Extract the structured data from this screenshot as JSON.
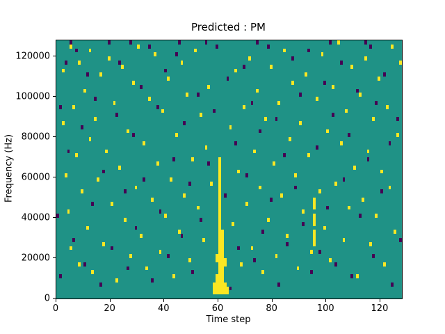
{
  "figure": {
    "background": "#ffffff"
  },
  "chart_data": {
    "type": "heatmap",
    "title": "Predicted : PM",
    "xlabel": "Time step",
    "ylabel": "Frequency (Hz)",
    "xlim": [
      0,
      128
    ],
    "ylim": [
      0,
      128000
    ],
    "x_ticks": [
      0,
      20,
      40,
      60,
      80,
      100,
      120
    ],
    "y_ticks": [
      0,
      20000,
      40000,
      60000,
      80000,
      100000,
      120000
    ],
    "grid": false,
    "legend": "none",
    "colors": {
      "background": "#1f9286",
      "high": "#fbe723",
      "low": "#440154"
    },
    "cell_grid": {
      "x_bins": 128,
      "y_bins": 64,
      "freq_per_bin": 2000
    },
    "yellow_cells": [
      [
        2,
        56
      ],
      [
        2,
        43
      ],
      [
        3,
        30
      ],
      [
        4,
        21
      ],
      [
        5,
        62
      ],
      [
        5,
        12
      ],
      [
        6,
        47
      ],
      [
        7,
        35
      ],
      [
        8,
        58
      ],
      [
        8,
        8
      ],
      [
        9,
        26
      ],
      [
        10,
        51
      ],
      [
        11,
        17
      ],
      [
        12,
        39
      ],
      [
        12,
        61
      ],
      [
        13,
        6
      ],
      [
        14,
        44
      ],
      [
        15,
        29
      ],
      [
        16,
        55
      ],
      [
        17,
        13
      ],
      [
        18,
        36
      ],
      [
        19,
        59
      ],
      [
        20,
        23
      ],
      [
        21,
        48
      ],
      [
        22,
        4
      ],
      [
        23,
        32
      ],
      [
        24,
        57
      ],
      [
        25,
        19
      ],
      [
        26,
        41
      ],
      [
        27,
        10
      ],
      [
        28,
        53
      ],
      [
        29,
        27
      ],
      [
        30,
        62
      ],
      [
        31,
        15
      ],
      [
        32,
        38
      ],
      [
        33,
        7
      ],
      [
        34,
        49
      ],
      [
        35,
        24
      ],
      [
        36,
        60
      ],
      [
        37,
        33
      ],
      [
        38,
        11
      ],
      [
        39,
        46
      ],
      [
        40,
        20
      ],
      [
        41,
        54
      ],
      [
        42,
        29
      ],
      [
        43,
        5
      ],
      [
        44,
        40
      ],
      [
        45,
        16
      ],
      [
        46,
        58
      ],
      [
        47,
        25
      ],
      [
        48,
        50
      ],
      [
        49,
        9
      ],
      [
        50,
        34
      ],
      [
        51,
        61
      ],
      [
        52,
        22
      ],
      [
        53,
        45
      ],
      [
        54,
        14
      ],
      [
        55,
        37
      ],
      [
        56,
        52
      ],
      [
        57,
        28
      ],
      [
        64,
        42
      ],
      [
        65,
        18
      ],
      [
        66,
        56
      ],
      [
        67,
        31
      ],
      [
        68,
        8
      ],
      [
        69,
        47
      ],
      [
        70,
        23
      ],
      [
        71,
        59
      ],
      [
        72,
        12
      ],
      [
        73,
        36
      ],
      [
        74,
        51
      ],
      [
        75,
        27
      ],
      [
        76,
        6
      ],
      [
        77,
        44
      ],
      [
        78,
        19
      ],
      [
        79,
        57
      ],
      [
        80,
        33
      ],
      [
        81,
        10
      ],
      [
        82,
        48
      ],
      [
        83,
        25
      ],
      [
        84,
        61
      ],
      [
        85,
        15
      ],
      [
        86,
        39
      ],
      [
        87,
        53
      ],
      [
        88,
        30
      ],
      [
        89,
        7
      ],
      [
        90,
        43
      ],
      [
        91,
        21
      ],
      [
        92,
        55
      ],
      [
        93,
        35
      ],
      [
        94,
        11
      ],
      [
        96,
        49
      ],
      [
        97,
        26
      ],
      [
        98,
        60
      ],
      [
        99,
        17
      ],
      [
        100,
        41
      ],
      [
        101,
        9
      ],
      [
        102,
        52
      ],
      [
        103,
        28
      ],
      [
        104,
        63
      ],
      [
        105,
        38
      ],
      [
        106,
        14
      ],
      [
        107,
        46
      ],
      [
        108,
        22
      ],
      [
        109,
        57
      ],
      [
        110,
        32
      ],
      [
        111,
        5
      ],
      [
        112,
        50
      ],
      [
        113,
        24
      ],
      [
        114,
        59
      ],
      [
        115,
        36
      ],
      [
        116,
        13
      ],
      [
        117,
        44
      ],
      [
        118,
        20
      ],
      [
        119,
        54
      ],
      [
        120,
        31
      ],
      [
        121,
        8
      ],
      [
        122,
        47
      ],
      [
        123,
        27
      ],
      [
        124,
        62
      ],
      [
        125,
        16
      ],
      [
        126,
        40
      ],
      [
        127,
        58
      ],
      [
        60,
        1
      ],
      [
        60,
        2
      ],
      [
        60,
        3
      ],
      [
        60,
        4
      ],
      [
        60,
        5
      ],
      [
        60,
        6
      ],
      [
        60,
        7
      ],
      [
        60,
        8
      ],
      [
        60,
        9
      ],
      [
        60,
        10
      ],
      [
        60,
        11
      ],
      [
        60,
        12
      ],
      [
        60,
        13
      ],
      [
        60,
        14
      ],
      [
        60,
        15
      ],
      [
        60,
        16
      ],
      [
        60,
        17
      ],
      [
        60,
        18
      ],
      [
        60,
        19
      ],
      [
        60,
        20
      ],
      [
        60,
        21
      ],
      [
        60,
        22
      ],
      [
        60,
        23
      ],
      [
        60,
        24
      ],
      [
        60,
        25
      ],
      [
        60,
        26
      ],
      [
        60,
        27
      ],
      [
        60,
        28
      ],
      [
        60,
        29
      ],
      [
        60,
        30
      ],
      [
        60,
        31
      ],
      [
        60,
        32
      ],
      [
        60,
        33
      ],
      [
        60,
        34
      ],
      [
        61,
        1
      ],
      [
        61,
        2
      ],
      [
        61,
        3
      ],
      [
        61,
        4
      ],
      [
        61,
        5
      ],
      [
        61,
        6
      ],
      [
        61,
        7
      ],
      [
        61,
        8
      ],
      [
        61,
        9
      ],
      [
        61,
        10
      ],
      [
        61,
        11
      ],
      [
        61,
        12
      ],
      [
        61,
        13
      ],
      [
        61,
        14
      ],
      [
        61,
        15
      ],
      [
        61,
        16
      ],
      [
        59,
        1
      ],
      [
        59,
        2
      ],
      [
        59,
        3
      ],
      [
        59,
        4
      ],
      [
        59,
        5
      ],
      [
        59,
        9
      ],
      [
        59,
        10
      ],
      [
        58,
        1
      ],
      [
        58,
        2
      ],
      [
        58,
        3
      ],
      [
        62,
        1
      ],
      [
        62,
        2
      ],
      [
        62,
        3
      ],
      [
        62,
        8
      ],
      [
        62,
        9
      ],
      [
        63,
        1
      ],
      [
        63,
        2
      ],
      [
        95,
        13
      ],
      [
        95,
        14
      ],
      [
        95,
        15
      ],
      [
        95,
        16
      ],
      [
        95,
        18
      ],
      [
        95,
        19
      ],
      [
        95,
        20
      ],
      [
        95,
        22
      ],
      [
        95,
        23
      ],
      [
        95,
        24
      ]
    ],
    "dark_cells": [
      [
        0,
        20
      ],
      [
        1,
        47
      ],
      [
        1,
        5
      ],
      [
        3,
        58
      ],
      [
        4,
        36
      ],
      [
        6,
        14
      ],
      [
        7,
        61
      ],
      [
        9,
        42
      ],
      [
        10,
        8
      ],
      [
        11,
        55
      ],
      [
        13,
        23
      ],
      [
        14,
        49
      ],
      [
        16,
        3
      ],
      [
        17,
        31
      ],
      [
        19,
        63
      ],
      [
        20,
        12
      ],
      [
        22,
        45
      ],
      [
        23,
        58
      ],
      [
        25,
        26
      ],
      [
        26,
        7
      ],
      [
        28,
        40
      ],
      [
        29,
        17
      ],
      [
        31,
        52
      ],
      [
        32,
        29
      ],
      [
        34,
        62
      ],
      [
        35,
        4
      ],
      [
        37,
        47
      ],
      [
        38,
        21
      ],
      [
        40,
        56
      ],
      [
        41,
        10
      ],
      [
        43,
        34
      ],
      [
        44,
        60
      ],
      [
        46,
        15
      ],
      [
        47,
        43
      ],
      [
        49,
        28
      ],
      [
        50,
        6
      ],
      [
        52,
        50
      ],
      [
        53,
        19
      ],
      [
        55,
        63
      ],
      [
        56,
        33
      ],
      [
        58,
        46
      ],
      [
        62,
        25
      ],
      [
        63,
        54
      ],
      [
        64,
        2
      ],
      [
        66,
        38
      ],
      [
        67,
        12
      ],
      [
        69,
        57
      ],
      [
        70,
        30
      ],
      [
        72,
        48
      ],
      [
        73,
        9
      ],
      [
        75,
        41
      ],
      [
        76,
        16
      ],
      [
        78,
        62
      ],
      [
        79,
        24
      ],
      [
        81,
        44
      ],
      [
        82,
        3
      ],
      [
        84,
        35
      ],
      [
        85,
        13
      ],
      [
        87,
        59
      ],
      [
        88,
        27
      ],
      [
        90,
        50
      ],
      [
        91,
        18
      ],
      [
        93,
        61
      ],
      [
        94,
        6
      ],
      [
        96,
        37
      ],
      [
        97,
        11
      ],
      [
        99,
        53
      ],
      [
        100,
        22
      ],
      [
        102,
        45
      ],
      [
        103,
        8
      ],
      [
        105,
        58
      ],
      [
        106,
        29
      ],
      [
        108,
        40
      ],
      [
        109,
        5
      ],
      [
        111,
        51
      ],
      [
        112,
        20
      ],
      [
        114,
        63
      ],
      [
        115,
        34
      ],
      [
        117,
        10
      ],
      [
        118,
        48
      ],
      [
        120,
        26
      ],
      [
        121,
        55
      ],
      [
        123,
        38
      ],
      [
        124,
        3
      ],
      [
        126,
        44
      ],
      [
        127,
        14
      ],
      [
        5,
        63
      ],
      [
        27,
        63
      ],
      [
        45,
        63
      ],
      [
        74,
        63
      ],
      [
        101,
        63
      ],
      [
        116,
        62
      ],
      [
        59,
        62
      ]
    ]
  }
}
